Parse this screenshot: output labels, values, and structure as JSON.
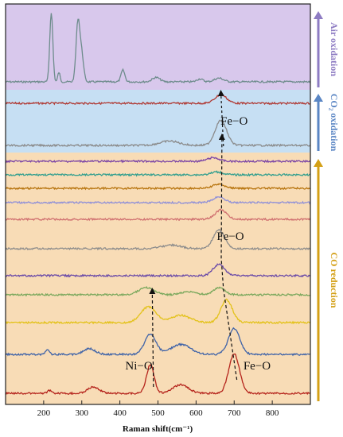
{
  "chart_data": {
    "type": "line",
    "title": "",
    "xlabel": "Raman shift(cm⁻¹)",
    "ylabel": "",
    "xlim": [
      100,
      900
    ],
    "xticks": [
      200,
      300,
      400,
      500,
      600,
      700,
      800
    ],
    "grid": false,
    "legend": "none",
    "regions": [
      {
        "label": "Air oxidation",
        "color": "#d8c8ec",
        "arrow_color": "#8e7cc3"
      },
      {
        "label": "CO₂ oxidation",
        "color": "#c6dff3",
        "arrow_color": "#5b86c4"
      },
      {
        "label": "CO reduction",
        "color": "#f8dcb6",
        "arrow_color": "#d4a017"
      }
    ],
    "annotations": [
      {
        "text": "Fe−O",
        "x": 700,
        "region": "CO₂ oxidation"
      },
      {
        "text": "Fe−O",
        "x": 690,
        "region": "CO reduction"
      },
      {
        "text": "Ni−O",
        "x": 450,
        "region": "CO reduction"
      },
      {
        "text": "Fe−O",
        "x": 760,
        "region": "CO reduction"
      }
    ],
    "series": [
      {
        "region": 0,
        "color": "#6e8c8c",
        "peaks": [
          [
            220,
            95,
            4
          ],
          [
            240,
            13,
            3
          ],
          [
            290,
            82,
            5
          ],
          [
            300,
            35,
            5
          ],
          [
            408,
            16,
            5
          ],
          [
            495,
            6,
            10
          ],
          [
            610,
            4,
            8
          ],
          [
            660,
            5,
            12
          ]
        ]
      },
      {
        "region": 1,
        "color": "#b03a34",
        "peaks": [
          [
            665,
            12,
            15
          ]
        ]
      },
      {
        "region": 1,
        "color": "#8a8a8a",
        "peaks": [
          [
            530,
            6,
            25
          ],
          [
            665,
            35,
            15
          ]
        ]
      },
      {
        "region": 2,
        "color": "#7a44a6",
        "peaks": [
          [
            645,
            5,
            15
          ]
        ]
      },
      {
        "region": 2,
        "color": "#2f9e8e",
        "peaks": [
          [
            655,
            4,
            15
          ]
        ]
      },
      {
        "region": 2,
        "color": "#b7740e",
        "peaks": [
          [
            660,
            6,
            15
          ]
        ]
      },
      {
        "region": 2,
        "color": "#8f8fd8",
        "peaks": [
          [
            660,
            8,
            15
          ]
        ]
      },
      {
        "region": 2,
        "color": "#d07070",
        "peaks": [
          [
            665,
            13,
            15
          ]
        ]
      },
      {
        "region": 2,
        "color": "#8c8c8c",
        "peaks": [
          [
            535,
            5,
            25
          ],
          [
            660,
            26,
            15
          ]
        ]
      },
      {
        "region": 2,
        "color": "#6a4aa8",
        "peaks": [
          [
            660,
            16,
            15
          ]
        ]
      },
      {
        "region": 2,
        "color": "#7aa85c",
        "peaks": [
          [
            470,
            10,
            20
          ],
          [
            580,
            4,
            20
          ],
          [
            660,
            10,
            15
          ]
        ]
      },
      {
        "region": 2,
        "color": "#e3c21a",
        "peaks": [
          [
            475,
            22,
            20
          ],
          [
            560,
            10,
            25
          ],
          [
            680,
            32,
            15
          ]
        ]
      },
      {
        "region": 2,
        "color": "#3f63a8",
        "peaks": [
          [
            210,
            6,
            5
          ],
          [
            320,
            8,
            15
          ],
          [
            480,
            28,
            15
          ],
          [
            560,
            14,
            25
          ],
          [
            700,
            36,
            15
          ]
        ]
      },
      {
        "region": 2,
        "color": "#b5241c",
        "peaks": [
          [
            215,
            4,
            5
          ],
          [
            330,
            9,
            15
          ],
          [
            480,
            40,
            10
          ],
          [
            560,
            12,
            20
          ],
          [
            700,
            55,
            14
          ]
        ]
      }
    ]
  }
}
